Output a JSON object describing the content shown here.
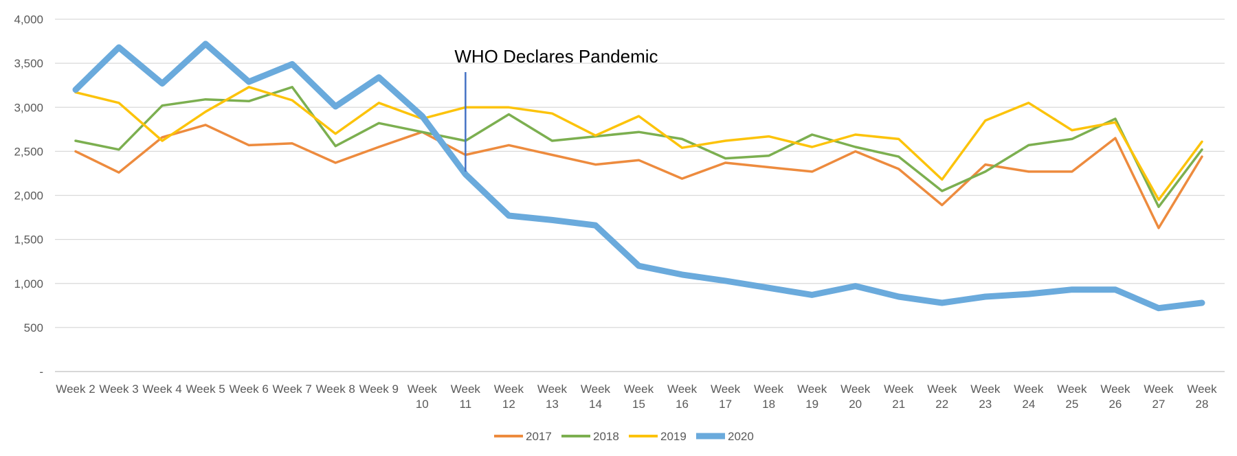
{
  "chart_data": {
    "type": "line",
    "title": "",
    "xlabel": "",
    "ylabel": "",
    "categories": [
      "Week 2",
      "Week 3",
      "Week 4",
      "Week 5",
      "Week 6",
      "Week 7",
      "Week 8",
      "Week 9",
      "Week 10",
      "Week 11",
      "Week 12",
      "Week 13",
      "Week 14",
      "Week 15",
      "Week 16",
      "Week 17",
      "Week 18",
      "Week 19",
      "Week 20",
      "Week 21",
      "Week 22",
      "Week 23",
      "Week 24",
      "Week 25",
      "Week 26",
      "Week 27",
      "Week 28"
    ],
    "ylim": [
      0,
      4000
    ],
    "yticks": [
      0,
      500,
      1000,
      1500,
      2000,
      2500,
      3000,
      3500,
      4000
    ],
    "ytick_labels": [
      "-",
      "500",
      "1,000",
      "1,500",
      "2,000",
      "2,500",
      "3,000",
      "3,500",
      "4,000"
    ],
    "grid": true,
    "legend_position": "bottom",
    "series": [
      {
        "name": "2017",
        "color": "#ED8B3E",
        "width": "thin",
        "values": [
          2500,
          2260,
          2660,
          2800,
          2570,
          2590,
          2370,
          2550,
          2720,
          2460,
          2570,
          2460,
          2350,
          2400,
          2190,
          2370,
          2320,
          2270,
          2500,
          2300,
          1890,
          2350,
          2270,
          2270,
          2650,
          1630,
          2440
        ]
      },
      {
        "name": "2018",
        "color": "#7CAF50",
        "width": "thin",
        "values": [
          2620,
          2520,
          3020,
          3090,
          3070,
          3230,
          2560,
          2820,
          2720,
          2620,
          2920,
          2620,
          2670,
          2720,
          2640,
          2420,
          2450,
          2690,
          2550,
          2440,
          2050,
          2270,
          2570,
          2640,
          2870,
          1870,
          2520
        ]
      },
      {
        "name": "2019",
        "color": "#FCC30B",
        "width": "thin",
        "values": [
          3170,
          3050,
          2620,
          2950,
          3230,
          3080,
          2700,
          3050,
          2870,
          3000,
          3000,
          2930,
          2680,
          2900,
          2540,
          2620,
          2670,
          2550,
          2690,
          2640,
          2180,
          2850,
          3050,
          2740,
          2830,
          1950,
          2610
        ]
      },
      {
        "name": "2020",
        "color": "#6AAADC",
        "width": "thick",
        "values": [
          3200,
          3680,
          3270,
          3720,
          3290,
          3490,
          3010,
          3340,
          2900,
          2240,
          1770,
          1720,
          1660,
          1200,
          1100,
          1030,
          950,
          870,
          970,
          850,
          780,
          850,
          880,
          930,
          930,
          720,
          780
        ]
      }
    ],
    "annotations": [
      {
        "text": "WHO Declares Pandemic",
        "x_category": "Week 11",
        "y_from": 2270,
        "y_to": 3400,
        "color": "#4472C4"
      }
    ]
  }
}
